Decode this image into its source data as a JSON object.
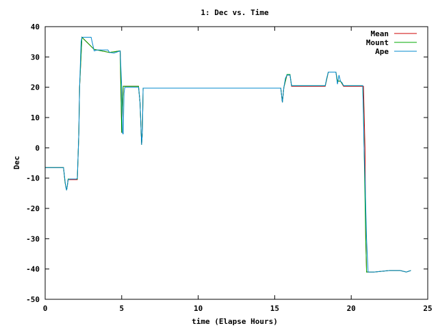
{
  "chart_data": {
    "type": "line",
    "title": "1: Dec vs. Time",
    "xlabel": "time (Elapse Hours)",
    "ylabel": "Dec",
    "xlim": [
      0,
      25
    ],
    "ylim": [
      -50,
      40
    ],
    "xticks": [
      0,
      5,
      10,
      15,
      20,
      25
    ],
    "yticks": [
      -50,
      -40,
      -30,
      -20,
      -10,
      0,
      10,
      20,
      30,
      40
    ],
    "xtick_labels": [
      "0",
      "5",
      "10",
      "15",
      "20",
      "25"
    ],
    "ytick_labels": [
      "-50",
      "-40",
      "-30",
      "-20",
      "-10",
      "0",
      "10",
      "20",
      "30",
      "40"
    ],
    "grid": false,
    "legend_position": "top-right",
    "series": [
      {
        "name": "Mean",
        "color": "#cc0000",
        "x": [
          0.0,
          1.2,
          1.3,
          1.4,
          1.45,
          1.5,
          1.6,
          2.1,
          2.2,
          2.25,
          2.4,
          3.2,
          4.2,
          4.9,
          5.0,
          5.1,
          5.2,
          5.3,
          5.4,
          6.1,
          6.2,
          6.3,
          6.35,
          6.4,
          6.5,
          15.4,
          15.5,
          15.6,
          15.8,
          16.0,
          16.1,
          16.3,
          18.3,
          18.5,
          19.0,
          19.1,
          19.3,
          19.5,
          19.9,
          20.8,
          20.9,
          20.95,
          21.0,
          21.1,
          21.5,
          22.5,
          23.2,
          23.6,
          23.9
        ],
        "y": [
          -6.5,
          -6.5,
          -11.5,
          -14.0,
          -12.5,
          -10.5,
          -10.5,
          -10.5,
          5.0,
          20.0,
          36.5,
          32.5,
          31.5,
          32.0,
          5.0,
          20.3,
          20.3,
          20.3,
          20.3,
          20.3,
          15.0,
          1.0,
          5.0,
          19.7,
          19.7,
          19.7,
          15.0,
          20.0,
          24.0,
          24.0,
          20.3,
          20.3,
          20.3,
          25.0,
          25.0,
          22.0,
          22.0,
          20.3,
          20.3,
          20.3,
          0.0,
          -30.0,
          -41.0,
          -41.0,
          -41.0,
          -40.5,
          -40.5,
          -41.0,
          -40.5
        ]
      },
      {
        "name": "Mount",
        "color": "#00aa00",
        "x": [
          0.0,
          1.2,
          1.3,
          1.4,
          1.45,
          1.5,
          1.6,
          2.1,
          2.2,
          2.25,
          2.4,
          3.2,
          4.2,
          4.9,
          5.0,
          5.1,
          5.2,
          5.3,
          5.4,
          6.1,
          6.2,
          6.3,
          6.35,
          6.4,
          6.5,
          15.4,
          15.5,
          15.6,
          15.8,
          16.0,
          16.1,
          16.3,
          18.3,
          18.5,
          19.0,
          19.1,
          19.3,
          19.5,
          19.9,
          20.75,
          20.8,
          20.85,
          20.95,
          21.0,
          21.1,
          21.5,
          22.5,
          23.2,
          23.6,
          23.9
        ],
        "y": [
          -6.5,
          -6.5,
          -11.5,
          -14.0,
          -12.5,
          -10.3,
          -10.3,
          -10.3,
          5.0,
          20.0,
          36.5,
          32.5,
          31.5,
          32.0,
          5.0,
          20.3,
          20.3,
          20.3,
          20.3,
          20.3,
          15.0,
          1.0,
          5.0,
          19.7,
          19.7,
          19.7,
          15.0,
          20.0,
          24.2,
          24.2,
          20.5,
          20.5,
          20.5,
          25.0,
          25.0,
          22.0,
          22.0,
          20.5,
          20.5,
          20.5,
          12.0,
          -2.5,
          -30.0,
          -41.0,
          -41.0,
          -41.0,
          -40.5,
          -40.5,
          -41.0,
          -40.5
        ]
      },
      {
        "name": "Ape",
        "color": "#0088cc",
        "x": [
          0.0,
          1.2,
          1.3,
          1.35,
          1.4,
          1.45,
          1.5,
          1.6,
          2.05,
          2.1,
          2.2,
          2.25,
          2.35,
          2.4,
          3.0,
          3.2,
          3.4,
          4.1,
          4.2,
          4.5,
          4.9,
          5.0,
          5.05,
          5.1,
          5.15,
          5.2,
          5.3,
          6.0,
          6.1,
          6.2,
          6.3,
          6.35,
          6.4,
          6.5,
          15.4,
          15.5,
          15.6,
          15.7,
          15.8,
          16.0,
          16.1,
          16.3,
          18.3,
          18.4,
          18.5,
          19.0,
          19.1,
          19.2,
          19.3,
          19.4,
          19.5,
          19.9,
          20.75,
          20.8,
          20.85,
          20.9,
          21.0,
          21.1,
          21.5,
          22.5,
          23.2,
          23.6,
          23.9
        ],
        "y": [
          -6.5,
          -6.5,
          -11.0,
          -13.0,
          -14.0,
          -12.5,
          -10.5,
          -10.3,
          -10.3,
          -10.0,
          5.0,
          20.0,
          35.0,
          36.5,
          36.5,
          32.0,
          32.3,
          32.3,
          31.5,
          31.3,
          32.0,
          20.0,
          5.0,
          4.5,
          18.0,
          20.0,
          20.0,
          20.0,
          20.0,
          15.0,
          1.0,
          5.0,
          19.7,
          19.7,
          19.7,
          15.0,
          20.0,
          23.0,
          24.0,
          24.0,
          20.5,
          20.5,
          20.5,
          23.0,
          25.0,
          25.0,
          21.0,
          24.0,
          22.0,
          21.5,
          20.5,
          20.5,
          20.5,
          10.0,
          -2.5,
          -10.0,
          -30.0,
          -41.0,
          -41.0,
          -40.5,
          -40.5,
          -41.0,
          -40.5
        ]
      }
    ]
  }
}
